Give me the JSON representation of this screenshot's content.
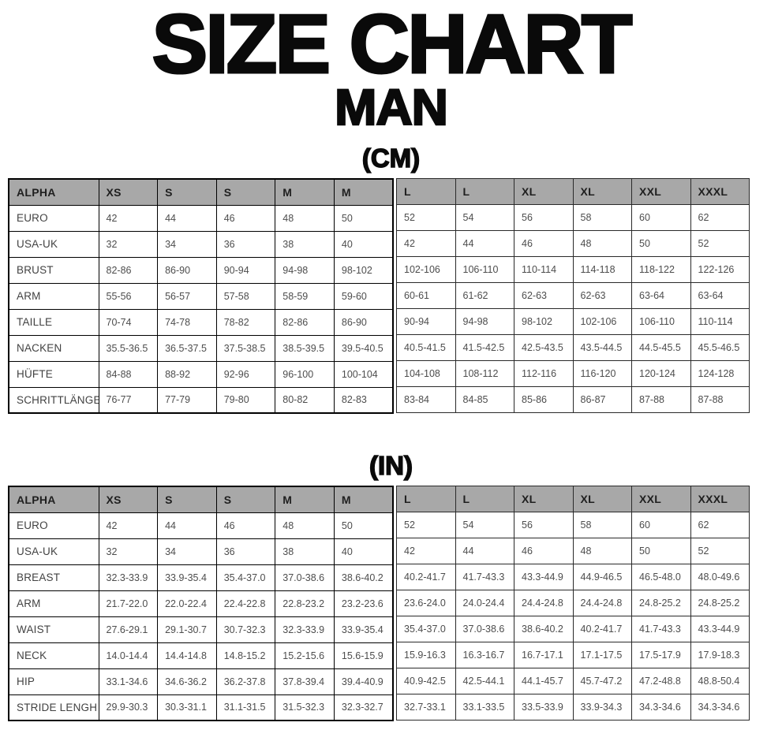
{
  "title": "SIZE CHART",
  "subtitle": "MAN",
  "colors": {
    "background": "#ffffff",
    "header_bg": "#a8a8a8",
    "border": "#000000",
    "header_text": "#1f1f1f",
    "cell_text": "#4d4d4d",
    "title_text": "#0a0a0a"
  },
  "tables": [
    {
      "unit_label": "(CM)",
      "header_left": [
        "ALPHA",
        "XS",
        "S",
        "S",
        "M",
        "M"
      ],
      "header_right": [
        "L",
        "L",
        "XL",
        "XL",
        "XXL",
        "XXXL"
      ],
      "rows": [
        {
          "label": "EURO",
          "left": [
            "42",
            "44",
            "46",
            "48",
            "50"
          ],
          "right": [
            "52",
            "54",
            "56",
            "58",
            "60",
            "62"
          ]
        },
        {
          "label": "USA-UK",
          "left": [
            "32",
            "34",
            "36",
            "38",
            "40"
          ],
          "right": [
            "42",
            "44",
            "46",
            "48",
            "50",
            "52"
          ]
        },
        {
          "label": "BRUST",
          "left": [
            "82-86",
            "86-90",
            "90-94",
            "94-98",
            "98-102"
          ],
          "right": [
            "102-106",
            "106-110",
            "110-114",
            "114-118",
            "118-122",
            "122-126"
          ]
        },
        {
          "label": "ARM",
          "left": [
            "55-56",
            "56-57",
            "57-58",
            "58-59",
            "59-60"
          ],
          "right": [
            "60-61",
            "61-62",
            "62-63",
            "62-63",
            "63-64",
            "63-64"
          ]
        },
        {
          "label": "TAILLE",
          "left": [
            "70-74",
            "74-78",
            "78-82",
            "82-86",
            "86-90"
          ],
          "right": [
            "90-94",
            "94-98",
            "98-102",
            "102-106",
            "106-110",
            "110-114"
          ]
        },
        {
          "label": "NACKEN",
          "left": [
            "35.5-36.5",
            "36.5-37.5",
            "37.5-38.5",
            "38.5-39.5",
            "39.5-40.5"
          ],
          "right": [
            "40.5-41.5",
            "41.5-42.5",
            "42.5-43.5",
            "43.5-44.5",
            "44.5-45.5",
            "45.5-46.5"
          ]
        },
        {
          "label": "HÜFTE",
          "left": [
            "84-88",
            "88-92",
            "92-96",
            "96-100",
            "100-104"
          ],
          "right": [
            "104-108",
            "108-112",
            "112-116",
            "116-120",
            "120-124",
            "124-128"
          ]
        },
        {
          "label": "SCHRITTLÄNGE",
          "left": [
            "76-77",
            "77-79",
            "79-80",
            "80-82",
            "82-83"
          ],
          "right": [
            "83-84",
            "84-85",
            "85-86",
            "86-87",
            "87-88",
            "87-88"
          ]
        }
      ]
    },
    {
      "unit_label": "(IN)",
      "header_left": [
        "ALPHA",
        "XS",
        "S",
        "S",
        "M",
        "M"
      ],
      "header_right": [
        "L",
        "L",
        "XL",
        "XL",
        "XXL",
        "XXXL"
      ],
      "rows": [
        {
          "label": "EURO",
          "left": [
            "42",
            "44",
            "46",
            "48",
            "50"
          ],
          "right": [
            "52",
            "54",
            "56",
            "58",
            "60",
            "62"
          ]
        },
        {
          "label": "USA-UK",
          "left": [
            "32",
            "34",
            "36",
            "38",
            "40"
          ],
          "right": [
            "42",
            "44",
            "46",
            "48",
            "50",
            "52"
          ]
        },
        {
          "label": "BREAST",
          "left": [
            "32.3-33.9",
            "33.9-35.4",
            "35.4-37.0",
            "37.0-38.6",
            "38.6-40.2"
          ],
          "right": [
            "40.2-41.7",
            "41.7-43.3",
            "43.3-44.9",
            "44.9-46.5",
            "46.5-48.0",
            "48.0-49.6"
          ]
        },
        {
          "label": "ARM",
          "left": [
            "21.7-22.0",
            "22.0-22.4",
            "22.4-22.8",
            "22.8-23.2",
            "23.2-23.6"
          ],
          "right": [
            "23.6-24.0",
            "24.0-24.4",
            "24.4-24.8",
            "24.4-24.8",
            "24.8-25.2",
            "24.8-25.2"
          ]
        },
        {
          "label": "WAIST",
          "left": [
            "27.6-29.1",
            "29.1-30.7",
            "30.7-32.3",
            "32.3-33.9",
            "33.9-35.4"
          ],
          "right": [
            "35.4-37.0",
            "37.0-38.6",
            "38.6-40.2",
            "40.2-41.7",
            "41.7-43.3",
            "43.3-44.9"
          ]
        },
        {
          "label": "NECK",
          "left": [
            "14.0-14.4",
            "14.4-14.8",
            "14.8-15.2",
            "15.2-15.6",
            "15.6-15.9"
          ],
          "right": [
            "15.9-16.3",
            "16.3-16.7",
            "16.7-17.1",
            "17.1-17.5",
            "17.5-17.9",
            "17.9-18.3"
          ]
        },
        {
          "label": "HIP",
          "left": [
            "33.1-34.6",
            "34.6-36.2",
            "36.2-37.8",
            "37.8-39.4",
            "39.4-40.9"
          ],
          "right": [
            "40.9-42.5",
            "42.5-44.1",
            "44.1-45.7",
            "45.7-47.2",
            "47.2-48.8",
            "48.8-50.4"
          ]
        },
        {
          "label": "STRIDE LENGH",
          "left": [
            "29.9-30.3",
            "30.3-31.1",
            "31.1-31.5",
            "31.5-32.3",
            "32.3-32.7"
          ],
          "right": [
            "32.7-33.1",
            "33.1-33.5",
            "33.5-33.9",
            "33.9-34.3",
            "34.3-34.6",
            "34.3-34.6"
          ]
        }
      ]
    }
  ]
}
